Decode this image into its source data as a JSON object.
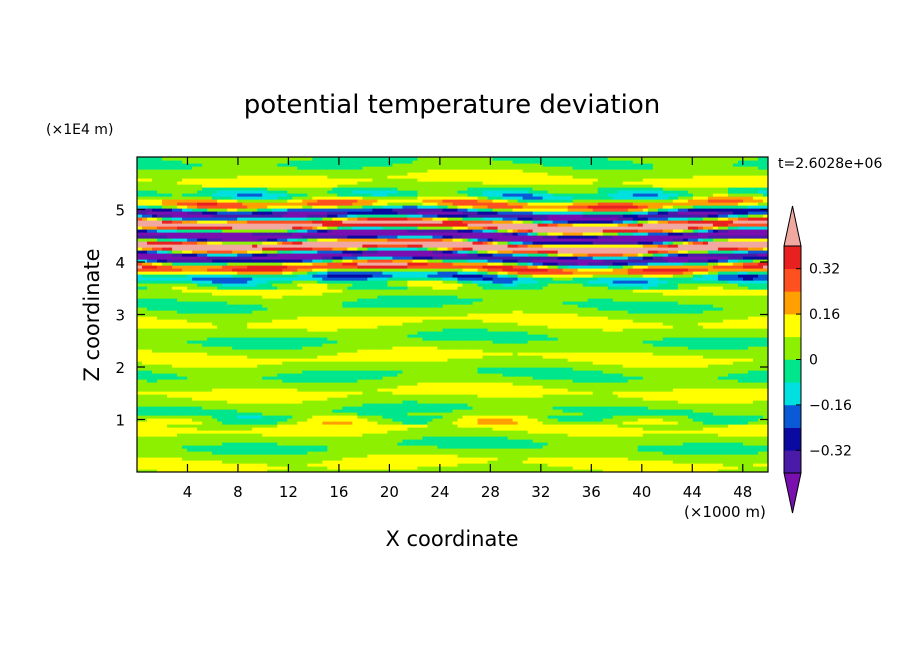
{
  "chart_data": {
    "type": "heatmap",
    "title": "potential temperature deviation",
    "xlabel": "X coordinate",
    "ylabel": "Z coordinate",
    "x_unit": "(×1000 m)",
    "y_unit": "(×1E4 m)",
    "time_label": "t=2.6028e+06",
    "xlim": [
      0,
      50
    ],
    "ylim": [
      0,
      6
    ],
    "x_ticks": [
      4,
      8,
      12,
      16,
      20,
      24,
      28,
      32,
      36,
      40,
      44,
      48
    ],
    "y_ticks": [
      1,
      2,
      3,
      4,
      5
    ],
    "colorbar": {
      "levels": [
        -0.4,
        -0.32,
        -0.24,
        -0.16,
        -0.08,
        0,
        0.08,
        0.16,
        0.24,
        0.32,
        0.4
      ],
      "tick_labels": [
        "0.32",
        "0.16",
        "0",
        "−0.16",
        "−0.32"
      ],
      "tick_values": [
        0.32,
        0.16,
        0,
        -0.16,
        -0.32
      ],
      "colors_low_to_high": [
        "#7a0fb0",
        "#4a1aa8",
        "#0a0aa0",
        "#0a5ad8",
        "#00e0e0",
        "#00e68c",
        "#8cf000",
        "#ffff00",
        "#ffa000",
        "#ff5020",
        "#e82020",
        "#f0a8a0"
      ]
    },
    "regions": [
      {
        "z_range": [
          0,
          3.5
        ],
        "description_values": "near-zero deviation, alternating 0 to 0.08 bands"
      },
      {
        "z_range": [
          3.5,
          5.4
        ],
        "description_values": "strong layered oscillation between -0.4 and 0.4"
      },
      {
        "z_range": [
          5.4,
          6
        ],
        "description_values": "near-zero deviation"
      }
    ]
  }
}
